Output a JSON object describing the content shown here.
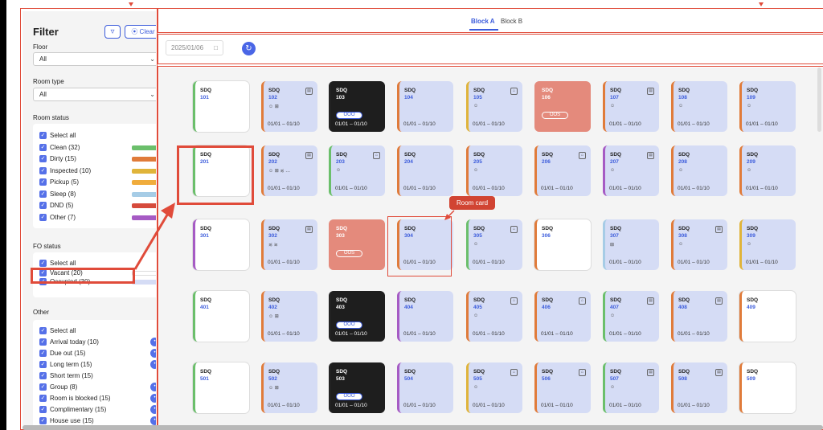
{
  "filter": {
    "title": "Filter",
    "funnel_icon": "funnel-icon",
    "clear_label": "⦿ Clear",
    "floor": {
      "label": "Floor",
      "value": "All"
    },
    "room_type": {
      "label": "Room type",
      "value": "All"
    },
    "room_status": {
      "label": "Room status",
      "items": [
        {
          "label": "Select all",
          "color": ""
        },
        {
          "label": "Clean (32)",
          "color": "#6bbf6b"
        },
        {
          "label": "Dirty (15)",
          "color": "#e07b3a"
        },
        {
          "label": "Inspected (10)",
          "color": "#e0b43a"
        },
        {
          "label": "Pickup (5)",
          "color": "#f0ac3c"
        },
        {
          "label": "Sleep (8)",
          "color": "#a6cce6"
        },
        {
          "label": "DND (5)",
          "color": "#d64b3c"
        },
        {
          "label": "Other (7)",
          "color": "#a65bc4"
        }
      ]
    },
    "fo_status": {
      "label": "FO status",
      "items": [
        {
          "label": "Select all",
          "color": ""
        },
        {
          "label": "Vacant (20)",
          "color": "#ffffff"
        },
        {
          "label": "Occupied (30)",
          "color": "#d5dcf5"
        }
      ]
    },
    "other": {
      "label": "Other",
      "items": [
        {
          "label": "Select all",
          "icon": ""
        },
        {
          "label": "Arrival today (10)",
          "icon": "arrival-icon"
        },
        {
          "label": "Due out (15)",
          "icon": "departure-icon"
        },
        {
          "label": "Long term (15)",
          "icon": "calendar-icon"
        },
        {
          "label": "Short term (15)",
          "icon": ""
        },
        {
          "label": "Group (8)",
          "icon": "group-icon"
        },
        {
          "label": "Room is blocked (15)",
          "icon": "lock-icon"
        },
        {
          "label": "Complimentary (15)",
          "icon": "gift-icon"
        },
        {
          "label": "House use (15)",
          "icon": "house-icon"
        }
      ]
    }
  },
  "tabs": [
    "Block A",
    "Block B"
  ],
  "date": "2025/01/06",
  "callout": "Room card",
  "floors": [
    {
      "rooms": [
        {
          "n": "101",
          "code": "SDQ",
          "bar": "#6bbf6b",
          "bg": "#fff",
          "dates": "",
          "ic": "",
          "pill": "",
          "s": ""
        },
        {
          "n": "102",
          "code": "SDQ",
          "bar": "#e07b3a",
          "bg": "#d5dcf5",
          "dates": "01/01 – 01/10",
          "ic": "▤",
          "pill": "",
          "s": "☺ ⊞"
        },
        {
          "n": "103",
          "code": "SDQ",
          "bar": "#222",
          "bg": "#1e1e1e",
          "dates": "01/01 – 01/10",
          "ic": "",
          "pill": "OOO",
          "s": ""
        },
        {
          "n": "104",
          "code": "SDQ",
          "bar": "#e07b3a",
          "bg": "#d5dcf5",
          "dates": "01/01 – 01/10",
          "ic": "",
          "pill": "",
          "s": ""
        },
        {
          "n": "105",
          "code": "SDQ",
          "bar": "#e0b43a",
          "bg": "#d5dcf5",
          "dates": "01/01 – 01/10",
          "ic": "⌂",
          "pill": "",
          "s": "☺"
        },
        {
          "n": "106",
          "code": "SDQ",
          "bar": "#e48a7c",
          "bg": "#e48a7c",
          "dates": "",
          "ic": "",
          "pill": "OOS",
          "s": ""
        },
        {
          "n": "107",
          "code": "SDQ",
          "bar": "#e07b3a",
          "bg": "#d5dcf5",
          "dates": "01/01 – 01/10",
          "ic": "▤",
          "pill": "",
          "s": "☺"
        },
        {
          "n": "108",
          "code": "SDQ",
          "bar": "#e07b3a",
          "bg": "#d5dcf5",
          "dates": "01/01 – 01/10",
          "ic": "",
          "pill": "",
          "s": "☺"
        },
        {
          "n": "109",
          "code": "SDQ",
          "bar": "#e07b3a",
          "bg": "#d5dcf5",
          "dates": "01/01 – 01/10",
          "ic": "",
          "pill": "",
          "s": "☺"
        }
      ]
    },
    {
      "rooms": [
        {
          "n": "201",
          "code": "SDQ",
          "bar": "#6bbf6b",
          "bg": "#fff",
          "dates": "",
          "ic": "",
          "pill": "",
          "s": ""
        },
        {
          "n": "202",
          "code": "SDQ",
          "bar": "#e07b3a",
          "bg": "#d5dcf5",
          "dates": "01/01 – 01/10",
          "ic": "▤",
          "pill": "",
          "s": "☺ ⊞ ≲ …"
        },
        {
          "n": "203",
          "code": "SDQ",
          "bar": "#6bbf6b",
          "bg": "#d5dcf5",
          "dates": "01/01 – 01/10",
          "ic": "⌂",
          "pill": "",
          "s": "☺"
        },
        {
          "n": "204",
          "code": "SDQ",
          "bar": "#e07b3a",
          "bg": "#d5dcf5",
          "dates": "01/01 – 01/10",
          "ic": "",
          "pill": "",
          "s": ""
        },
        {
          "n": "205",
          "code": "SDQ",
          "bar": "#e07b3a",
          "bg": "#d5dcf5",
          "dates": "01/01 – 01/10",
          "ic": "",
          "pill": "",
          "s": "☺"
        },
        {
          "n": "206",
          "code": "SDQ",
          "bar": "#e07b3a",
          "bg": "#d5dcf5",
          "dates": "01/01 – 01/10",
          "ic": "⌂",
          "pill": "",
          "s": ""
        },
        {
          "n": "207",
          "code": "SDQ",
          "bar": "#a65bc4",
          "bg": "#d5dcf5",
          "dates": "01/01 – 01/10",
          "ic": "▤",
          "pill": "",
          "s": "☺"
        },
        {
          "n": "208",
          "code": "SDQ",
          "bar": "#e07b3a",
          "bg": "#d5dcf5",
          "dates": "01/01 – 01/10",
          "ic": "",
          "pill": "",
          "s": "☺"
        },
        {
          "n": "209",
          "code": "SDQ",
          "bar": "#e07b3a",
          "bg": "#d5dcf5",
          "dates": "01/01 – 01/10",
          "ic": "",
          "pill": "",
          "s": "☺"
        }
      ]
    },
    {
      "rooms": [
        {
          "n": "301",
          "code": "SDQ",
          "bar": "#a65bc4",
          "bg": "#fff",
          "dates": "",
          "ic": "",
          "pill": "",
          "s": ""
        },
        {
          "n": "302",
          "code": "SDQ",
          "bar": "#e07b3a",
          "bg": "#d5dcf5",
          "dates": "01/01 – 01/10",
          "ic": "▤",
          "pill": "",
          "s": "≲ ≳"
        },
        {
          "n": "303",
          "code": "SDQ",
          "bar": "#e48a7c",
          "bg": "#e48a7c",
          "dates": "",
          "ic": "",
          "pill": "OOS",
          "s": ""
        },
        {
          "n": "304",
          "code": "SDQ",
          "bar": "#e07b3a",
          "bg": "#d5dcf5",
          "dates": "01/01 – 01/10",
          "ic": "",
          "pill": "",
          "s": ""
        },
        {
          "n": "305",
          "code": "SDQ",
          "bar": "#6bbf6b",
          "bg": "#d5dcf5",
          "dates": "01/01 – 01/10",
          "ic": "⌂",
          "pill": "",
          "s": "☺"
        },
        {
          "n": "306",
          "code": "SDQ",
          "bar": "#e07b3a",
          "bg": "#fff",
          "dates": "",
          "ic": "",
          "pill": "",
          "s": ""
        },
        {
          "n": "307",
          "code": "SDQ",
          "bar": "#a6cce6",
          "bg": "#d5dcf5",
          "dates": "01/01 – 01/10",
          "ic": "",
          "pill": "",
          "s": "⊞"
        },
        {
          "n": "308",
          "code": "SDQ",
          "bar": "#e07b3a",
          "bg": "#d5dcf5",
          "dates": "01/01 – 01/10",
          "ic": "▤",
          "pill": "",
          "s": "☺"
        },
        {
          "n": "309",
          "code": "SDQ",
          "bar": "#e0b43a",
          "bg": "#d5dcf5",
          "dates": "01/01 – 01/10",
          "ic": "",
          "pill": "",
          "s": "☺"
        }
      ]
    },
    {
      "rooms": [
        {
          "n": "401",
          "code": "SDQ",
          "bar": "#6bbf6b",
          "bg": "#fff",
          "dates": "",
          "ic": "",
          "pill": "",
          "s": ""
        },
        {
          "n": "402",
          "code": "SDQ",
          "bar": "#e07b3a",
          "bg": "#d5dcf5",
          "dates": "01/01 – 01/10",
          "ic": "",
          "pill": "",
          "s": "☺ ⊞"
        },
        {
          "n": "403",
          "code": "SDQ",
          "bar": "#222",
          "bg": "#1e1e1e",
          "dates": "01/01 – 01/10",
          "ic": "",
          "pill": "OOO",
          "s": ""
        },
        {
          "n": "404",
          "code": "SDQ",
          "bar": "#a65bc4",
          "bg": "#d5dcf5",
          "dates": "01/01 – 01/10",
          "ic": "",
          "pill": "",
          "s": ""
        },
        {
          "n": "405",
          "code": "SDQ",
          "bar": "#e07b3a",
          "bg": "#d5dcf5",
          "dates": "01/01 – 01/10",
          "ic": "⌂",
          "pill": "",
          "s": "☺"
        },
        {
          "n": "406",
          "code": "SDQ",
          "bar": "#e07b3a",
          "bg": "#d5dcf5",
          "dates": "01/01 – 01/10",
          "ic": "⌂",
          "pill": "",
          "s": ""
        },
        {
          "n": "407",
          "code": "SDQ",
          "bar": "#6bbf6b",
          "bg": "#d5dcf5",
          "dates": "01/01 – 01/10",
          "ic": "▤",
          "pill": "",
          "s": "☺"
        },
        {
          "n": "408",
          "code": "SDQ",
          "bar": "#e07b3a",
          "bg": "#d5dcf5",
          "dates": "01/01 – 01/10",
          "ic": "▤",
          "pill": "",
          "s": ""
        },
        {
          "n": "409",
          "code": "SDQ",
          "bar": "#e07b3a",
          "bg": "#fff",
          "dates": "",
          "ic": "",
          "pill": "",
          "s": ""
        }
      ]
    },
    {
      "rooms": [
        {
          "n": "501",
          "code": "SDQ",
          "bar": "#6bbf6b",
          "bg": "#fff",
          "dates": "",
          "ic": "",
          "pill": "",
          "s": ""
        },
        {
          "n": "502",
          "code": "SDQ",
          "bar": "#e07b3a",
          "bg": "#d5dcf5",
          "dates": "01/01 – 01/10",
          "ic": "",
          "pill": "",
          "s": "☺ ⊞"
        },
        {
          "n": "503",
          "code": "SDQ",
          "bar": "#222",
          "bg": "#1e1e1e",
          "dates": "01/01 – 01/10",
          "ic": "",
          "pill": "OOO",
          "s": ""
        },
        {
          "n": "504",
          "code": "SDQ",
          "bar": "#a65bc4",
          "bg": "#d5dcf5",
          "dates": "01/01 – 01/10",
          "ic": "",
          "pill": "",
          "s": ""
        },
        {
          "n": "505",
          "code": "SDQ",
          "bar": "#e0b43a",
          "bg": "#d5dcf5",
          "dates": "01/01 – 01/10",
          "ic": "⌂",
          "pill": "",
          "s": "☺"
        },
        {
          "n": "506",
          "code": "SDQ",
          "bar": "#e07b3a",
          "bg": "#d5dcf5",
          "dates": "01/01 – 01/10",
          "ic": "⌂",
          "pill": "",
          "s": ""
        },
        {
          "n": "507",
          "code": "SDQ",
          "bar": "#6bbf6b",
          "bg": "#d5dcf5",
          "dates": "01/01 – 01/10",
          "ic": "▤",
          "pill": "",
          "s": "☺"
        },
        {
          "n": "508",
          "code": "SDQ",
          "bar": "#e07b3a",
          "bg": "#d5dcf5",
          "dates": "01/01 – 01/10",
          "ic": "▤",
          "pill": "",
          "s": ""
        },
        {
          "n": "509",
          "code": "SDQ",
          "bar": "#e07b3a",
          "bg": "#fff",
          "dates": "",
          "ic": "",
          "pill": "",
          "s": ""
        }
      ]
    }
  ]
}
